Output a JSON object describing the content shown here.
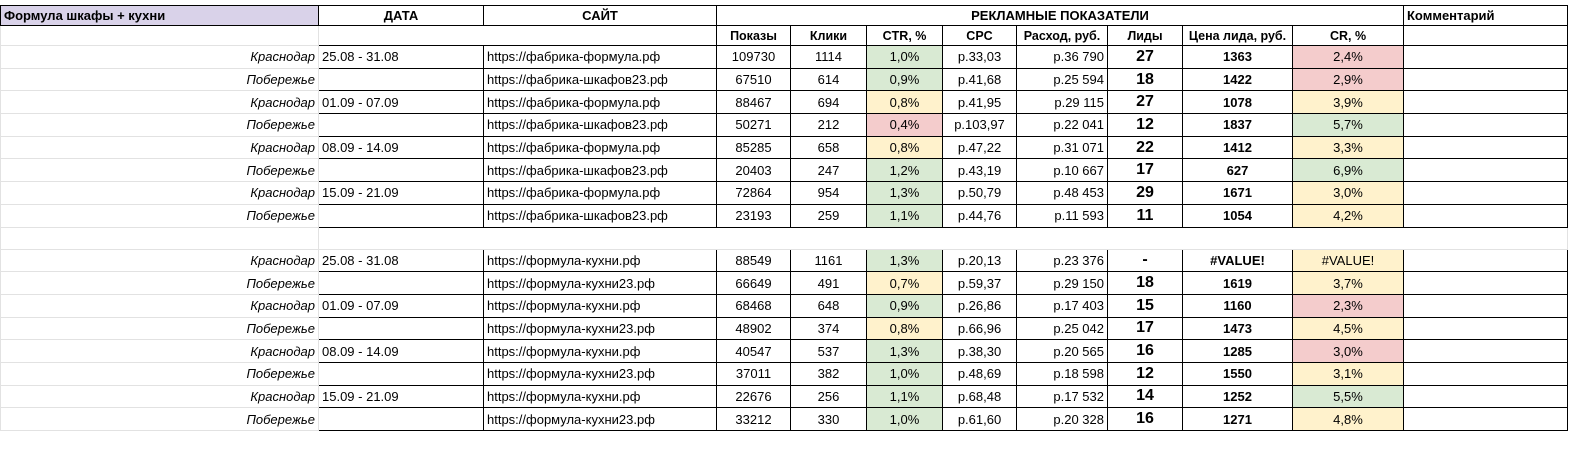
{
  "header": {
    "title": "Формула шкафы + кухни",
    "date": "ДАТА",
    "site": "САЙТ",
    "metrics": "РЕКЛАМНЫЕ ПОКАЗАТЕЛИ",
    "comment": "Комментарий"
  },
  "subheader": [
    "Показы",
    "Клики",
    "CTR, %",
    "CPC",
    "Расход, руб.",
    "Лиды",
    "Цена лида, руб.",
    "CR, %"
  ],
  "fills": {
    "green": "#d9ead3",
    "yellow": "#fff2cc",
    "red": "#f4cccc"
  },
  "groups": [
    [
      {
        "region": "Краснодар",
        "date": "25.08 - 31.08",
        "site": "https://фабрика-формула.рф",
        "shows": "109730",
        "clicks": "1114",
        "ctr": "1,0%",
        "cpc": "р.33,03",
        "spend": "р.36 790",
        "leads": "27",
        "lead_price": "1363",
        "cr": "2,4%",
        "ctr_fill": "green",
        "cr_fill": "red"
      },
      {
        "region": "Побережье",
        "site": "https://фабрика-шкафов23.рф",
        "shows": "67510",
        "clicks": "614",
        "ctr": "0,9%",
        "cpc": "р.41,68",
        "spend": "р.25 594",
        "leads": "18",
        "lead_price": "1422",
        "cr": "2,9%",
        "ctr_fill": "green",
        "cr_fill": "red"
      },
      {
        "region": "Краснодар",
        "date": "01.09 - 07.09",
        "site": "https://фабрика-формула.рф",
        "shows": "88467",
        "clicks": "694",
        "ctr": "0,8%",
        "cpc": "р.41,95",
        "spend": "р.29 115",
        "leads": "27",
        "lead_price": "1078",
        "cr": "3,9%",
        "ctr_fill": "yellow",
        "cr_fill": "yellow"
      },
      {
        "region": "Побережье",
        "site": "https://фабрика-шкафов23.рф",
        "shows": "50271",
        "clicks": "212",
        "ctr": "0,4%",
        "cpc": "р.103,97",
        "spend": "р.22 041",
        "leads": "12",
        "lead_price": "1837",
        "cr": "5,7%",
        "ctr_fill": "red",
        "cr_fill": "green"
      },
      {
        "region": "Краснодар",
        "date": "08.09 - 14.09",
        "site": "https://фабрика-формула.рф",
        "shows": "85285",
        "clicks": "658",
        "ctr": "0,8%",
        "cpc": "р.47,22",
        "spend": "р.31 071",
        "leads": "22",
        "lead_price": "1412",
        "cr": "3,3%",
        "ctr_fill": "yellow",
        "cr_fill": "yellow"
      },
      {
        "region": "Побережье",
        "site": "https://фабрика-шкафов23.рф",
        "shows": "20403",
        "clicks": "247",
        "ctr": "1,2%",
        "cpc": "р.43,19",
        "spend": "р.10 667",
        "leads": "17",
        "lead_price": "627",
        "cr": "6,9%",
        "ctr_fill": "green",
        "cr_fill": "green"
      },
      {
        "region": "Краснодар",
        "date": "15.09 - 21.09",
        "site": "https://фабрика-формула.рф",
        "shows": "72864",
        "clicks": "954",
        "ctr": "1,3%",
        "cpc": "р.50,79",
        "spend": "р.48 453",
        "leads": "29",
        "lead_price": "1671",
        "cr": "3,0%",
        "ctr_fill": "green",
        "cr_fill": "yellow"
      },
      {
        "region": "Побережье",
        "site": "https://фабрика-шкафов23.рф",
        "shows": "23193",
        "clicks": "259",
        "ctr": "1,1%",
        "cpc": "р.44,76",
        "spend": "р.11 593",
        "leads": "11",
        "lead_price": "1054",
        "cr": "4,2%",
        "ctr_fill": "green",
        "cr_fill": "yellow"
      }
    ],
    [
      {
        "region": "Краснодар",
        "date": "25.08 - 31.08",
        "site": "https://формула-кухни.рф",
        "shows": "88549",
        "clicks": "1161",
        "ctr": "1,3%",
        "cpc": "р.20,13",
        "spend": "р.23 376",
        "leads": "-",
        "lead_price": "#VALUE!",
        "cr": "#VALUE!",
        "ctr_fill": "green",
        "cr_fill": "yellow"
      },
      {
        "region": "Побережье",
        "site": "https://формула-кухни23.рф",
        "shows": "66649",
        "clicks": "491",
        "ctr": "0,7%",
        "cpc": "р.59,37",
        "spend": "р.29 150",
        "leads": "18",
        "lead_price": "1619",
        "cr": "3,7%",
        "ctr_fill": "yellow",
        "cr_fill": "yellow"
      },
      {
        "region": "Краснодар",
        "date": "01.09 - 07.09",
        "site": "https://формула-кухни.рф",
        "shows": "68468",
        "clicks": "648",
        "ctr": "0,9%",
        "cpc": "р.26,86",
        "spend": "р.17 403",
        "leads": "15",
        "lead_price": "1160",
        "cr": "2,3%",
        "ctr_fill": "green",
        "cr_fill": "red"
      },
      {
        "region": "Побережье",
        "site": "https://формула-кухни23.рф",
        "shows": "48902",
        "clicks": "374",
        "ctr": "0,8%",
        "cpc": "р.66,96",
        "spend": "р.25 042",
        "leads": "17",
        "lead_price": "1473",
        "cr": "4,5%",
        "ctr_fill": "yellow",
        "cr_fill": "yellow"
      },
      {
        "region": "Краснодар",
        "date": "08.09 - 14.09",
        "site": "https://формула-кухни.рф",
        "shows": "40547",
        "clicks": "537",
        "ctr": "1,3%",
        "cpc": "р.38,30",
        "spend": "р.20 565",
        "leads": "16",
        "lead_price": "1285",
        "cr": "3,0%",
        "ctr_fill": "green",
        "cr_fill": "red"
      },
      {
        "region": "Побережье",
        "site": "https://формула-кухни23.рф",
        "shows": "37011",
        "clicks": "382",
        "ctr": "1,0%",
        "cpc": "р.48,69",
        "spend": "р.18 598",
        "leads": "12",
        "lead_price": "1550",
        "cr": "3,1%",
        "ctr_fill": "green",
        "cr_fill": "yellow"
      },
      {
        "region": "Краснодар",
        "date": "15.09 - 21.09",
        "site": "https://формула-кухни.рф",
        "shows": "22676",
        "clicks": "256",
        "ctr": "1,1%",
        "cpc": "р.68,48",
        "spend": "р.17 532",
        "leads": "14",
        "lead_price": "1252",
        "cr": "5,5%",
        "ctr_fill": "green",
        "cr_fill": "green"
      },
      {
        "region": "Побережье",
        "site": "https://формула-кухни23.рф",
        "shows": "33212",
        "clicks": "330",
        "ctr": "1,0%",
        "cpc": "р.61,60",
        "spend": "р.20 328",
        "leads": "16",
        "lead_price": "1271",
        "cr": "4,8%",
        "ctr_fill": "green",
        "cr_fill": "yellow"
      }
    ]
  ]
}
